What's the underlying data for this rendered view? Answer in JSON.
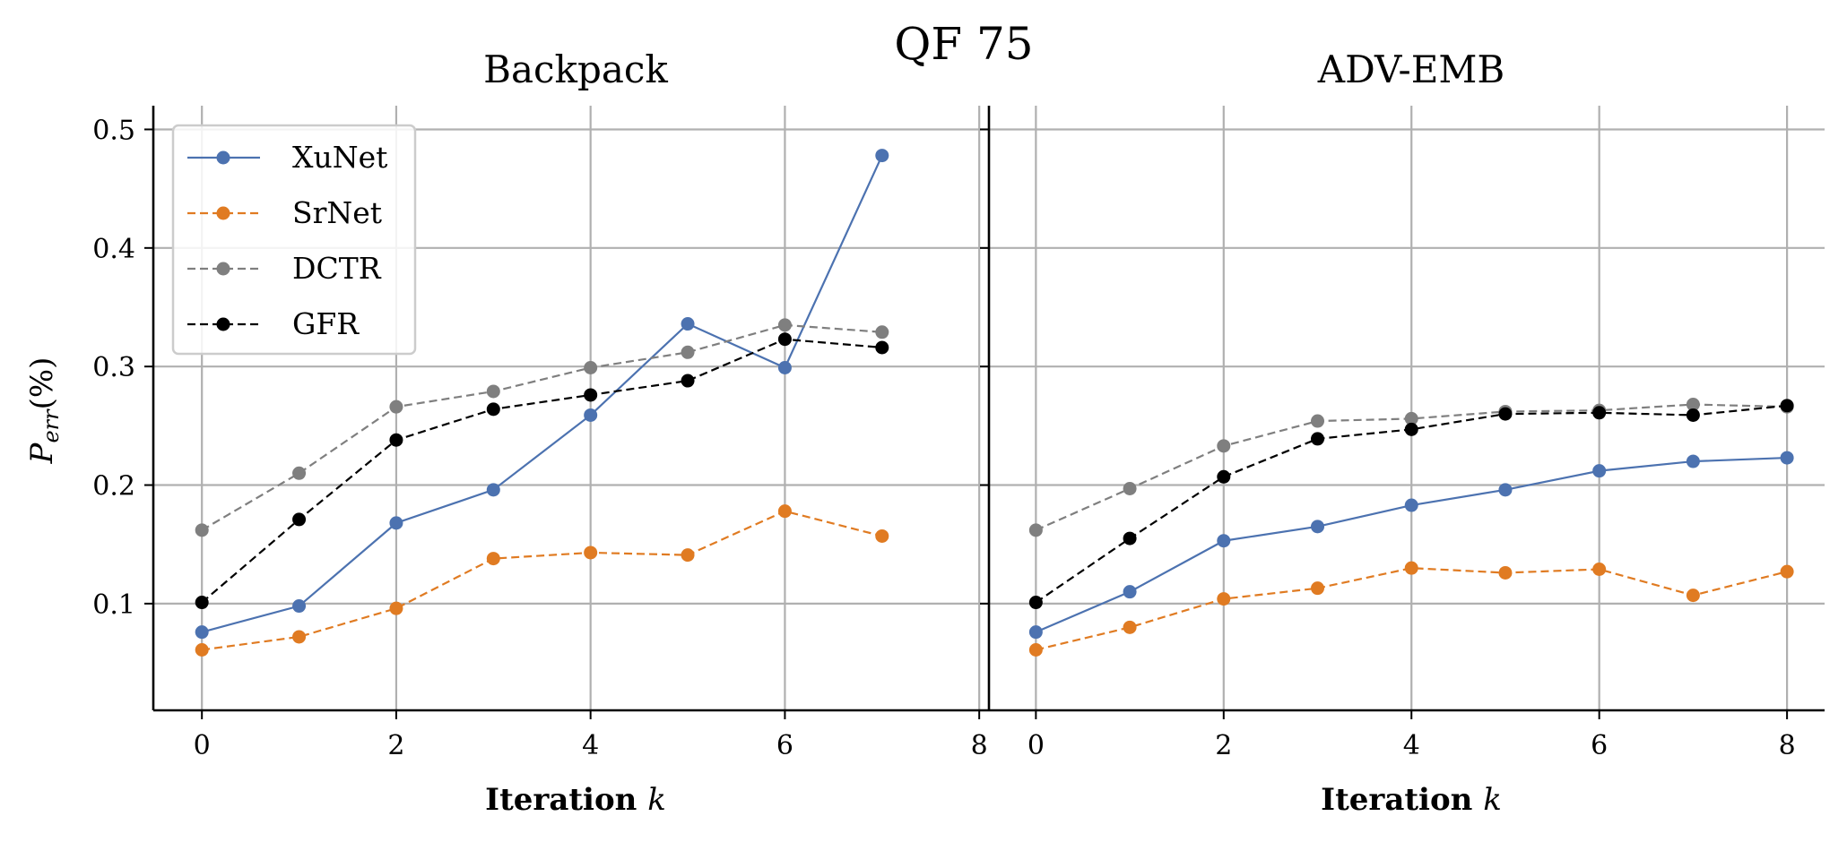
{
  "suptitle": "QF 75",
  "colors": {
    "XuNet": "#4c72b0",
    "SrNet": "#e07b22",
    "DCTR": "#7f7f7f",
    "GFR": "#000000",
    "grid": "#b0b0b0"
  },
  "chart_data": [
    {
      "type": "line",
      "title": "Backpack",
      "xlabel": "Iteration k",
      "ylabel": "P_err(%)",
      "xlim": [
        -0.5,
        8.1
      ],
      "ylim": [
        0.01,
        0.52
      ],
      "xticks": [
        0,
        2,
        4,
        6,
        8
      ],
      "yticks": [
        0.1,
        0.2,
        0.3,
        0.4,
        0.5
      ],
      "grid": true,
      "legend": "upper left",
      "x": [
        0,
        1,
        2,
        3,
        4,
        5,
        6,
        7
      ],
      "series": [
        {
          "name": "XuNet",
          "style": "solid",
          "values": [
            0.076,
            0.098,
            0.168,
            0.196,
            0.259,
            0.336,
            0.299,
            0.478
          ]
        },
        {
          "name": "SrNet",
          "style": "dashed",
          "values": [
            0.061,
            0.072,
            0.096,
            0.138,
            0.143,
            0.141,
            0.178,
            0.157
          ]
        },
        {
          "name": "DCTR",
          "style": "dashed",
          "values": [
            0.162,
            0.21,
            0.266,
            0.279,
            0.299,
            0.312,
            0.335,
            0.329
          ]
        },
        {
          "name": "GFR",
          "style": "dashed",
          "values": [
            0.101,
            0.171,
            0.238,
            0.264,
            0.276,
            0.288,
            0.323,
            0.316
          ]
        }
      ]
    },
    {
      "type": "line",
      "title": "ADV-EMB",
      "xlabel": "Iteration k",
      "ylabel": "",
      "xlim": [
        -0.5,
        8.4
      ],
      "ylim": [
        0.01,
        0.52
      ],
      "xticks": [
        0,
        2,
        4,
        6,
        8
      ],
      "yticks": [
        0.1,
        0.2,
        0.3,
        0.4,
        0.5
      ],
      "grid": true,
      "x": [
        0,
        1,
        2,
        3,
        4,
        5,
        6,
        7,
        8
      ],
      "series": [
        {
          "name": "XuNet",
          "style": "solid",
          "values": [
            0.076,
            0.11,
            0.153,
            0.165,
            0.183,
            0.196,
            0.212,
            0.22,
            0.223
          ]
        },
        {
          "name": "SrNet",
          "style": "dashed",
          "values": [
            0.061,
            0.08,
            0.104,
            0.113,
            0.13,
            0.126,
            0.129,
            0.107,
            0.127
          ]
        },
        {
          "name": "DCTR",
          "style": "dashed",
          "values": [
            0.162,
            0.197,
            0.233,
            0.254,
            0.256,
            0.262,
            0.263,
            0.268,
            0.266
          ]
        },
        {
          "name": "GFR",
          "style": "dashed",
          "values": [
            0.101,
            0.155,
            0.207,
            0.239,
            0.247,
            0.26,
            0.261,
            0.259,
            0.267
          ]
        }
      ]
    }
  ]
}
